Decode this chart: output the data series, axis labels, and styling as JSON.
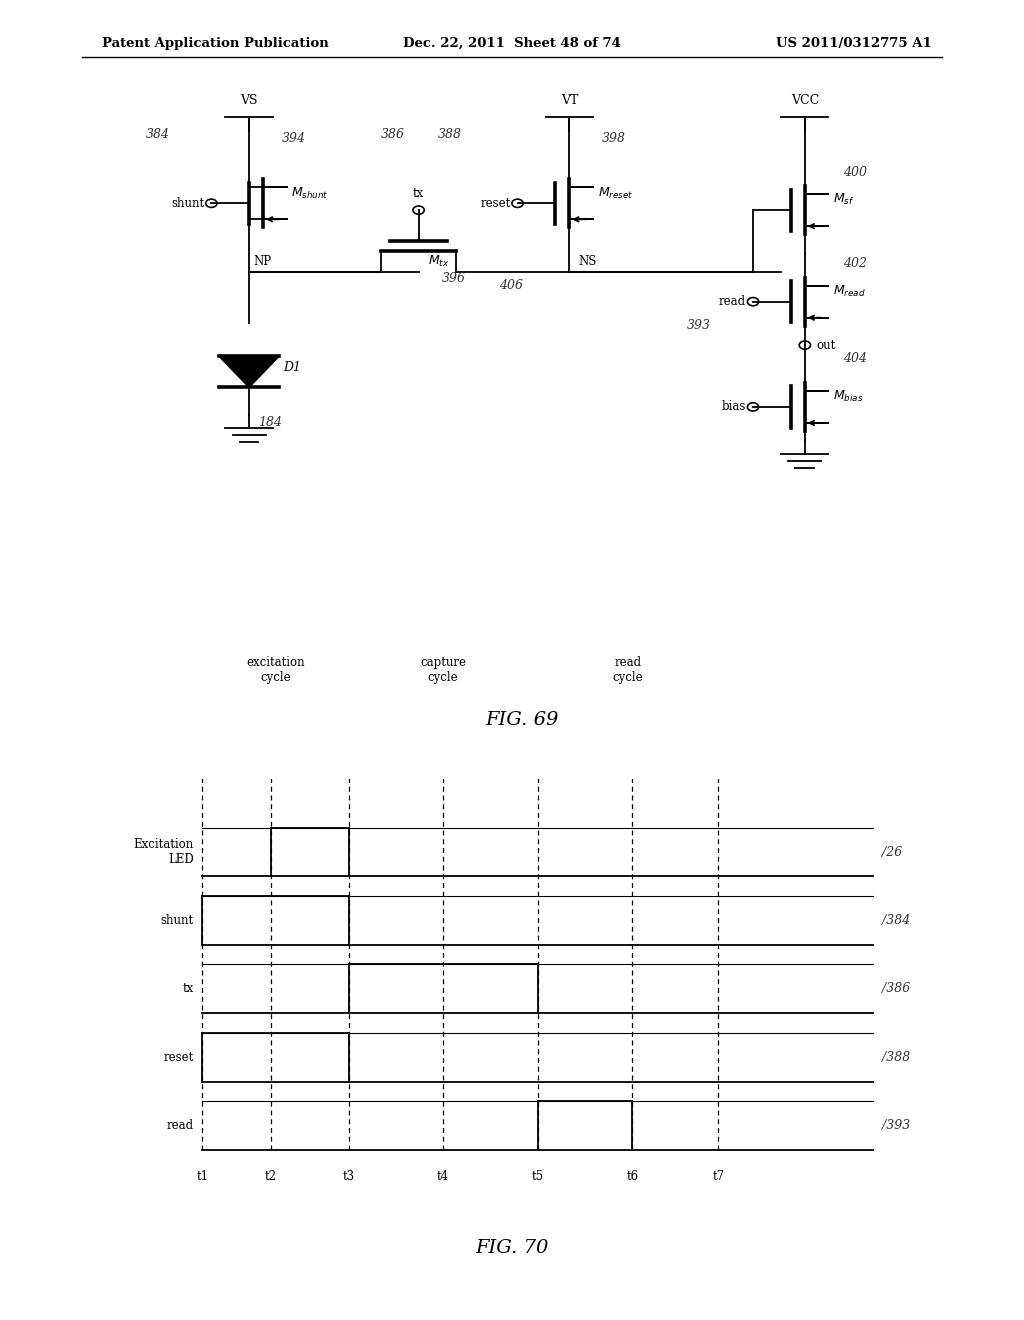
{
  "bg_color": "#ffffff",
  "header_left": "Patent Application Publication",
  "header_mid": "Dec. 22, 2011  Sheet 48 of 74",
  "header_right": "US 2011/0312775 A1",
  "fig69_label": "FIG. 69",
  "fig70_label": "FIG. 70",
  "timing_signals": [
    "Excitation\nLED",
    "shunt",
    "tx",
    "reset",
    "read"
  ],
  "timing_labels": [
    "26",
    "384",
    "386",
    "388",
    "393"
  ],
  "time_labels": [
    "t1",
    "t2",
    "t3",
    "t4",
    "t5",
    "t6",
    "t7"
  ],
  "cycle_labels": [
    "excitation\ncycle",
    "capture\ncycle",
    "read\ncycle"
  ]
}
